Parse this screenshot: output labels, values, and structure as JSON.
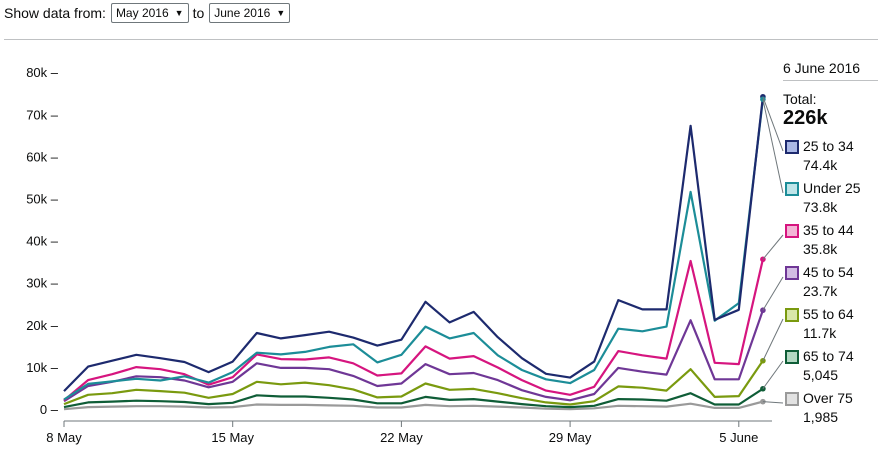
{
  "controls": {
    "label_from": "Show data from:",
    "from_value": "May 2016",
    "label_to": "to",
    "to_value": "June 2016"
  },
  "legend": {
    "date": "6 June 2016",
    "total_label": "Total:",
    "total_value": "226k",
    "items": [
      {
        "name": "25 to 34",
        "value": "74.4k",
        "color": "#1d2a6e",
        "fill": "#aab8e6"
      },
      {
        "name": "Under 25",
        "value": "73.8k",
        "color": "#1c8d98",
        "fill": "#bfe5e9"
      },
      {
        "name": "35 to 44",
        "value": "35.8k",
        "color": "#d6157f",
        "fill": "#f3b5d6"
      },
      {
        "name": "45 to 54",
        "value": "23.7k",
        "color": "#6f3796",
        "fill": "#d3bde4"
      },
      {
        "name": "55 to 64",
        "value": "11.7k",
        "color": "#7a9a0f",
        "fill": "#d9e7a8"
      },
      {
        "name": "65 to 74",
        "value": "5,045",
        "color": "#0f5d37",
        "fill": "#b3d8c2"
      },
      {
        "name": "Over 75",
        "value": "1,985",
        "color": "#9a9a9a",
        "fill": "#e2e2e2"
      }
    ]
  },
  "chart_data": {
    "type": "line",
    "title": "",
    "xlabel": "",
    "ylabel": "",
    "ylim": [
      0,
      80000
    ],
    "yticks": [
      0,
      10000,
      20000,
      30000,
      40000,
      50000,
      60000,
      70000,
      80000
    ],
    "ytick_labels": [
      "0 –",
      "10k –",
      "20k –",
      "30k –",
      "40k –",
      "50k –",
      "60k –",
      "70k –",
      "80k –"
    ],
    "xticks": [
      {
        "label": "8 May",
        "day": 0
      },
      {
        "label": "15 May",
        "day": 7
      },
      {
        "label": "22 May",
        "day": 14
      },
      {
        "label": "29 May",
        "day": 21
      },
      {
        "label": "5 June",
        "day": 28
      }
    ],
    "x": [
      "2016-05-08",
      "2016-05-09",
      "2016-05-10",
      "2016-05-11",
      "2016-05-12",
      "2016-05-13",
      "2016-05-14",
      "2016-05-15",
      "2016-05-16",
      "2016-05-17",
      "2016-05-18",
      "2016-05-19",
      "2016-05-20",
      "2016-05-21",
      "2016-05-22",
      "2016-05-23",
      "2016-05-24",
      "2016-05-25",
      "2016-05-26",
      "2016-05-27",
      "2016-05-28",
      "2016-05-29",
      "2016-05-30",
      "2016-05-31",
      "2016-06-01",
      "2016-06-02",
      "2016-06-03",
      "2016-06-04",
      "2016-06-05",
      "2016-06-06"
    ],
    "grid": false,
    "legend_position": "right",
    "series": [
      {
        "name": "25 to 34",
        "color": "#1d2a6e",
        "values": [
          4500,
          10300,
          11700,
          13100,
          12300,
          11400,
          9000,
          11500,
          18300,
          17000,
          17800,
          18600,
          17200,
          15300,
          16700,
          25700,
          20800,
          23300,
          17300,
          12300,
          8600,
          7700,
          11500,
          26100,
          23900,
          23900,
          67500,
          21400,
          23800,
          74400
        ]
      },
      {
        "name": "Under 25",
        "color": "#1c8d98",
        "values": [
          2500,
          6200,
          6800,
          7400,
          7000,
          8000,
          6500,
          9000,
          13600,
          13200,
          13800,
          15000,
          15600,
          11300,
          13100,
          19800,
          17000,
          18300,
          13000,
          9500,
          7300,
          6400,
          9500,
          19300,
          18700,
          19800,
          51800,
          21200,
          25400,
          73800
        ]
      },
      {
        "name": "35 to 44",
        "color": "#d6157f",
        "values": [
          2300,
          7100,
          8500,
          10200,
          9700,
          8500,
          6000,
          7800,
          13200,
          12100,
          12000,
          12500,
          11100,
          8200,
          8700,
          15100,
          12200,
          12800,
          10100,
          7100,
          4600,
          3600,
          5500,
          14000,
          13000,
          12200,
          35400,
          11200,
          10900,
          35800
        ]
      },
      {
        "name": "45 to 54",
        "color": "#6f3796",
        "values": [
          2100,
          5700,
          6700,
          8000,
          7800,
          7000,
          5400,
          6700,
          11100,
          10000,
          10000,
          9700,
          8100,
          5700,
          6300,
          10900,
          8500,
          8800,
          7100,
          4700,
          3100,
          2300,
          3800,
          10000,
          9100,
          8400,
          21300,
          7300,
          7300,
          23700
        ]
      },
      {
        "name": "55 to 64",
        "color": "#7a9a0f",
        "values": [
          1400,
          3600,
          4000,
          4800,
          4500,
          4100,
          2900,
          3800,
          6700,
          6100,
          6500,
          5900,
          4900,
          3000,
          3200,
          6300,
          4800,
          5000,
          4000,
          2800,
          1800,
          1300,
          2100,
          5600,
          5300,
          4600,
          9700,
          3100,
          3300,
          11700
        ]
      },
      {
        "name": "65 to 74",
        "color": "#0f5d37",
        "values": [
          700,
          1800,
          2000,
          2200,
          2100,
          1900,
          1400,
          1700,
          3500,
          3200,
          3200,
          2900,
          2500,
          1600,
          1600,
          3100,
          2400,
          2600,
          2000,
          1400,
          900,
          700,
          1000,
          2600,
          2500,
          2200,
          4000,
          1300,
          1300,
          5045
        ]
      },
      {
        "name": "Over 75",
        "color": "#9a9a9a",
        "values": [
          200,
          700,
          800,
          900,
          900,
          800,
          600,
          700,
          1300,
          1200,
          1200,
          1100,
          1000,
          600,
          600,
          1200,
          900,
          1000,
          800,
          600,
          300,
          200,
          400,
          1000,
          900,
          800,
          1500,
          500,
          500,
          1985
        ]
      }
    ]
  }
}
